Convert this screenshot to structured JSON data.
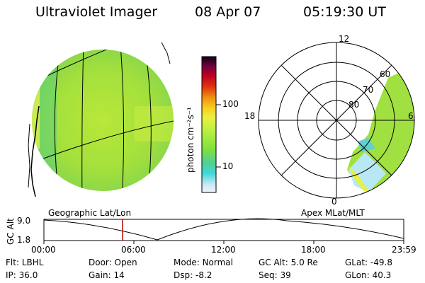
{
  "header": {
    "instrument": "Ultraviolet Imager",
    "date": "08 Apr 07",
    "time": "05:19:30 UT"
  },
  "panels": {
    "geo_label": "Geographic Lat/Lon",
    "apex_label": "Apex MLat/MLT"
  },
  "colorbar": {
    "unit_label": "photon cm⁻²s⁻¹",
    "tick_100": "100",
    "tick_10": "10",
    "colors": [
      "#e8eef8",
      "#a8e0f0",
      "#40d0d0",
      "#60d080",
      "#90e040",
      "#c8f040",
      "#f0f040",
      "#f8c020",
      "#f08010",
      "#e03010",
      "#c00020",
      "#800040",
      "#300030",
      "#000000"
    ]
  },
  "polar": {
    "mlt_labels": {
      "top": "12",
      "left": "18",
      "right": "6",
      "bottom": "0"
    },
    "lat_labels": [
      "60",
      "70",
      "80"
    ]
  },
  "altitude_strip": {
    "axis_label": "GC Alt",
    "y_ticks": [
      "9.0",
      "1.8"
    ],
    "x_ticks": [
      "00:00",
      "06:00",
      "12:00",
      "18:00",
      "23:59"
    ],
    "marker_time": "05:19:30"
  },
  "info": {
    "flt_label": "Flt:",
    "flt_value": "LBHL",
    "ip_label": "IP:",
    "ip_value": "36.0",
    "door_label": "Door:",
    "door_value": "Open",
    "gain_label": "Gain:",
    "gain_value": "14",
    "mode_label": "Mode:",
    "mode_value": "Normal",
    "dsp_label": "Dsp:",
    "dsp_value": "-8.2",
    "gcalt_label": "GC Alt:",
    "gcalt_value": "5.0 Re",
    "seq_label": "Seq:",
    "seq_value": "39",
    "glat_label": "GLat:",
    "glat_value": "-49.8",
    "glon_label": "GLon:",
    "glon_value": "40.3"
  }
}
